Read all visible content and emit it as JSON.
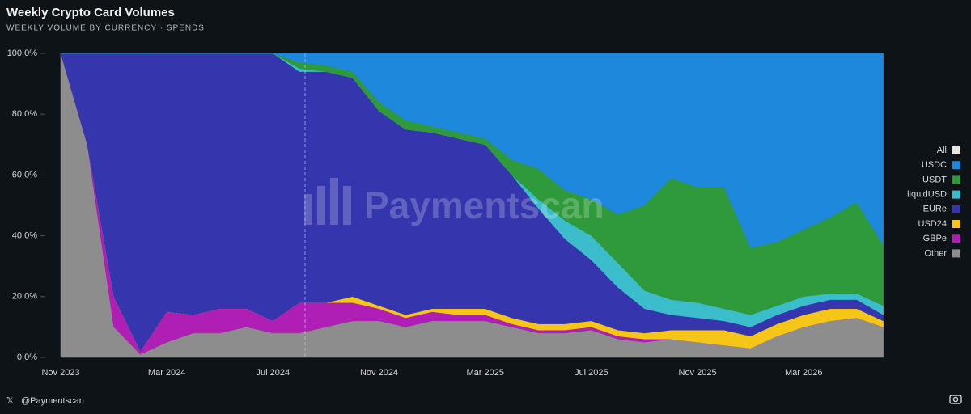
{
  "chart_data": {
    "type": "stacked_area",
    "title": "Weekly Crypto Card Volumes",
    "subtitle": "WEEKLY VOLUME BY CURRENCY · SPENDS",
    "watermark": "Paymentscan",
    "footer": "@Paymentscan",
    "categories": [
      "Nov 2023",
      null,
      null,
      null,
      "Mar 2024",
      null,
      null,
      null,
      "Jul 2024",
      null,
      null,
      null,
      "Nov 2024",
      null,
      null,
      null,
      "Mar 2025",
      null,
      null,
      null,
      "Jul 2025",
      null,
      null,
      null,
      "Nov 2025",
      null,
      null,
      null,
      "Mar 2026",
      null,
      null,
      null
    ],
    "ylim": [
      0,
      100
    ],
    "yticks": [
      {
        "value": 0,
        "label": "0.0%"
      },
      {
        "value": 20,
        "label": "20.0%"
      },
      {
        "value": 40,
        "label": "40.0%"
      },
      {
        "value": 60,
        "label": "60.0%"
      },
      {
        "value": 80,
        "label": "80.0%"
      },
      {
        "value": 100,
        "label": "100.0%"
      }
    ],
    "legend_all": {
      "name": "All",
      "color": "#e6e6e6"
    },
    "series": [
      {
        "name": "USDC",
        "color": "#1d88dc",
        "values": [
          0,
          0,
          0,
          0,
          0,
          0,
          0,
          0,
          0,
          3,
          4,
          6,
          16,
          22,
          24,
          26,
          28,
          35,
          38,
          45,
          48,
          53,
          50,
          41,
          44,
          44,
          64,
          62,
          58,
          54,
          49,
          63
        ]
      },
      {
        "name": "USDT",
        "color": "#2f9a3b",
        "values": [
          0,
          0,
          0,
          0,
          0,
          0,
          0,
          0,
          0,
          2,
          2,
          2,
          3,
          3,
          2,
          2,
          2,
          5,
          10,
          10,
          12,
          16,
          28,
          40,
          38,
          40,
          22,
          21,
          22,
          25,
          30,
          20
        ]
      },
      {
        "name": "liquidUSD",
        "color": "#3bbdcc",
        "values": [
          0,
          0,
          0,
          0,
          0,
          0,
          0,
          0,
          0,
          1,
          0,
          0,
          0,
          0,
          0,
          0,
          0,
          0,
          3,
          6,
          8,
          8,
          6,
          5,
          5,
          4,
          4,
          3,
          3,
          2,
          2,
          3
        ]
      },
      {
        "name": "EURe",
        "color": "#3535ae",
        "values": [
          0,
          30,
          80,
          98,
          85,
          86,
          84,
          84,
          88,
          76,
          76,
          72,
          64,
          61,
          58,
          56,
          54,
          47,
          38,
          28,
          20,
          14,
          8,
          5,
          4,
          3,
          3,
          3,
          3,
          3,
          3,
          2
        ]
      },
      {
        "name": "USD24",
        "color": "#f5c518",
        "values": [
          0,
          0,
          0,
          0,
          0,
          0,
          0,
          0,
          0,
          0,
          0,
          2,
          1,
          1,
          1,
          2,
          2,
          2,
          2,
          2,
          2,
          2,
          2,
          3,
          4,
          5,
          4,
          4,
          4,
          4,
          3,
          2
        ]
      },
      {
        "name": "GBPe",
        "color": "#b01fb5",
        "values": [
          0,
          0,
          10,
          1,
          10,
          6,
          8,
          6,
          4,
          10,
          8,
          6,
          4,
          3,
          3,
          2,
          2,
          1,
          1,
          1,
          1,
          1,
          1,
          0,
          0,
          0,
          0,
          0,
          0,
          0,
          0,
          0
        ]
      },
      {
        "name": "Other",
        "color": "#8d8d8d",
        "values": [
          100,
          70,
          10,
          1,
          5,
          8,
          8,
          10,
          8,
          8,
          10,
          12,
          12,
          10,
          12,
          12,
          12,
          10,
          8,
          8,
          9,
          6,
          5,
          6,
          5,
          4,
          3,
          7,
          10,
          12,
          13,
          10
        ]
      }
    ]
  }
}
